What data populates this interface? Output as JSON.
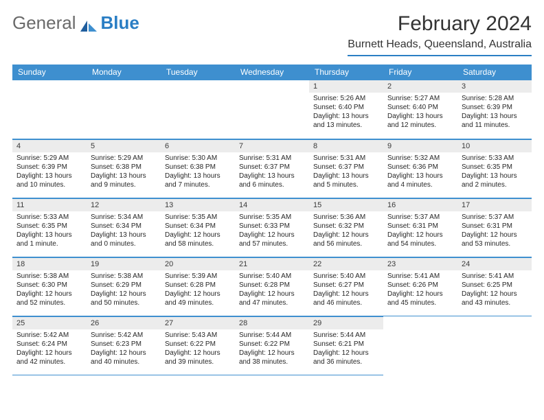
{
  "logo": {
    "text_general": "General",
    "text_blue": "Blue"
  },
  "header": {
    "month_title": "February 2024",
    "location": "Burnett Heads, Queensland, Australia"
  },
  "accent_color": "#3e8fcf",
  "rule_color": "#2a7ec4",
  "daynum_bg": "#ececec",
  "day_labels": [
    "Sunday",
    "Monday",
    "Tuesday",
    "Wednesday",
    "Thursday",
    "Friday",
    "Saturday"
  ],
  "weeks": [
    [
      null,
      null,
      null,
      null,
      {
        "n": "1",
        "sr": "5:26 AM",
        "ss": "6:40 PM",
        "dl": "13 hours and 13 minutes."
      },
      {
        "n": "2",
        "sr": "5:27 AM",
        "ss": "6:40 PM",
        "dl": "13 hours and 12 minutes."
      },
      {
        "n": "3",
        "sr": "5:28 AM",
        "ss": "6:39 PM",
        "dl": "13 hours and 11 minutes."
      }
    ],
    [
      {
        "n": "4",
        "sr": "5:29 AM",
        "ss": "6:39 PM",
        "dl": "13 hours and 10 minutes."
      },
      {
        "n": "5",
        "sr": "5:29 AM",
        "ss": "6:38 PM",
        "dl": "13 hours and 9 minutes."
      },
      {
        "n": "6",
        "sr": "5:30 AM",
        "ss": "6:38 PM",
        "dl": "13 hours and 7 minutes."
      },
      {
        "n": "7",
        "sr": "5:31 AM",
        "ss": "6:37 PM",
        "dl": "13 hours and 6 minutes."
      },
      {
        "n": "8",
        "sr": "5:31 AM",
        "ss": "6:37 PM",
        "dl": "13 hours and 5 minutes."
      },
      {
        "n": "9",
        "sr": "5:32 AM",
        "ss": "6:36 PM",
        "dl": "13 hours and 4 minutes."
      },
      {
        "n": "10",
        "sr": "5:33 AM",
        "ss": "6:35 PM",
        "dl": "13 hours and 2 minutes."
      }
    ],
    [
      {
        "n": "11",
        "sr": "5:33 AM",
        "ss": "6:35 PM",
        "dl": "13 hours and 1 minute."
      },
      {
        "n": "12",
        "sr": "5:34 AM",
        "ss": "6:34 PM",
        "dl": "13 hours and 0 minutes."
      },
      {
        "n": "13",
        "sr": "5:35 AM",
        "ss": "6:34 PM",
        "dl": "12 hours and 58 minutes."
      },
      {
        "n": "14",
        "sr": "5:35 AM",
        "ss": "6:33 PM",
        "dl": "12 hours and 57 minutes."
      },
      {
        "n": "15",
        "sr": "5:36 AM",
        "ss": "6:32 PM",
        "dl": "12 hours and 56 minutes."
      },
      {
        "n": "16",
        "sr": "5:37 AM",
        "ss": "6:31 PM",
        "dl": "12 hours and 54 minutes."
      },
      {
        "n": "17",
        "sr": "5:37 AM",
        "ss": "6:31 PM",
        "dl": "12 hours and 53 minutes."
      }
    ],
    [
      {
        "n": "18",
        "sr": "5:38 AM",
        "ss": "6:30 PM",
        "dl": "12 hours and 52 minutes."
      },
      {
        "n": "19",
        "sr": "5:38 AM",
        "ss": "6:29 PM",
        "dl": "12 hours and 50 minutes."
      },
      {
        "n": "20",
        "sr": "5:39 AM",
        "ss": "6:28 PM",
        "dl": "12 hours and 49 minutes."
      },
      {
        "n": "21",
        "sr": "5:40 AM",
        "ss": "6:28 PM",
        "dl": "12 hours and 47 minutes."
      },
      {
        "n": "22",
        "sr": "5:40 AM",
        "ss": "6:27 PM",
        "dl": "12 hours and 46 minutes."
      },
      {
        "n": "23",
        "sr": "5:41 AM",
        "ss": "6:26 PM",
        "dl": "12 hours and 45 minutes."
      },
      {
        "n": "24",
        "sr": "5:41 AM",
        "ss": "6:25 PM",
        "dl": "12 hours and 43 minutes."
      }
    ],
    [
      {
        "n": "25",
        "sr": "5:42 AM",
        "ss": "6:24 PM",
        "dl": "12 hours and 42 minutes."
      },
      {
        "n": "26",
        "sr": "5:42 AM",
        "ss": "6:23 PM",
        "dl": "12 hours and 40 minutes."
      },
      {
        "n": "27",
        "sr": "5:43 AM",
        "ss": "6:22 PM",
        "dl": "12 hours and 39 minutes."
      },
      {
        "n": "28",
        "sr": "5:44 AM",
        "ss": "6:22 PM",
        "dl": "12 hours and 38 minutes."
      },
      {
        "n": "29",
        "sr": "5:44 AM",
        "ss": "6:21 PM",
        "dl": "12 hours and 36 minutes."
      },
      null,
      null
    ]
  ],
  "labels": {
    "sunrise": "Sunrise:",
    "sunset": "Sunset:",
    "daylight": "Daylight:"
  }
}
